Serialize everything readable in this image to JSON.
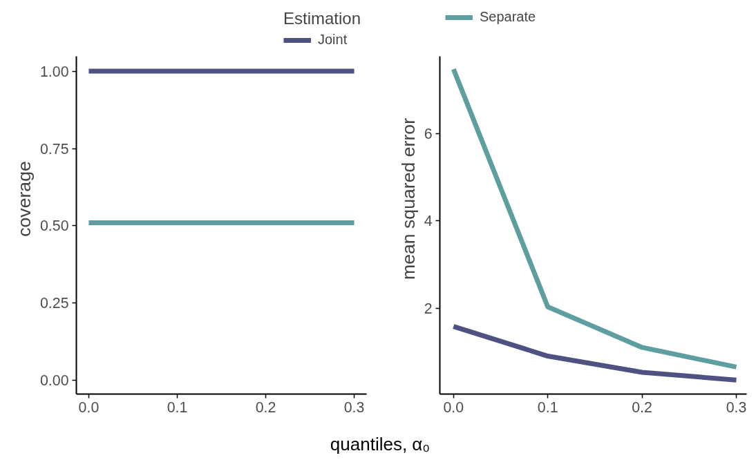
{
  "chart_data": [
    {
      "type": "line",
      "legend_title": "Estimation",
      "legend": "top right",
      "xlabel": "quantiles,  α₀",
      "ylabel": "coverage",
      "grid": false,
      "x": [
        0,
        0.1,
        0.2,
        0.3
      ],
      "xlim": [
        -0.014,
        0.314
      ],
      "ylim": [
        -0.044,
        1.049
      ],
      "xticks": [
        {
          "value": 0,
          "label": "0.0"
        },
        0.1,
        0.2,
        0.3
      ],
      "yticks": [
        {
          "value": 0,
          "label": "0.00"
        },
        0.25,
        {
          "value": 0.5,
          "label": "0.50"
        },
        0.75,
        {
          "value": 1,
          "label": "1.00"
        }
      ],
      "series": [
        {
          "name": "Joint",
          "color": "#4e5283",
          "values": [
            1.0,
            1.0,
            1.0,
            1.0
          ]
        },
        {
          "color": "#5f9ea0",
          "values": [
            0.51,
            0.51,
            0.51,
            0.51
          ]
        }
      ]
    },
    {
      "type": "line",
      "legend": "top left",
      "ylabel": "mean squared error",
      "grid": false,
      "x": [
        0,
        0.1,
        0.2,
        0.3
      ],
      "xlim": [
        -0.0145,
        0.311
      ],
      "ylim": [
        0.03,
        7.78
      ],
      "xticks": [
        {
          "value": 0,
          "label": "0.0"
        },
        0.1,
        0.2,
        0.3
      ],
      "yticks": [
        2,
        4,
        6
      ],
      "series": [
        {
          "color": "#4e5283",
          "values": [
            1.58,
            0.9,
            0.53,
            0.35
          ]
        },
        {
          "name": "Separate",
          "color": "#5f9ea0",
          "values": [
            7.48,
            2.03,
            1.1,
            0.65
          ]
        }
      ]
    }
  ]
}
